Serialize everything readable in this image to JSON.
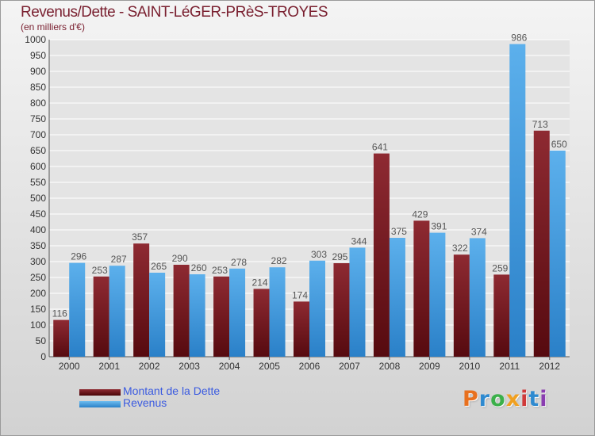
{
  "title": "Revenus/Dette - SAINT-LéGER-PRèS-TROYES",
  "subtitle": "(en milliers d'€)",
  "colors": {
    "dette": "#7a1a22",
    "revenus": "#4a9fe0",
    "axis_text": "#333333",
    "value_text": "#555555"
  },
  "legend": [
    {
      "label": "Montant de la Dette",
      "color": "#6b0f14"
    },
    {
      "label": "Revenus",
      "color": "#3d9ae0"
    }
  ],
  "logo": {
    "letters": [
      "P",
      "r",
      "o",
      "x",
      "i",
      "t",
      "i"
    ],
    "colors": [
      "#e8701e",
      "#2e8ad0",
      "#3bb04a",
      "#f0a020",
      "#d03a3a",
      "#2e8ad0",
      "#8a3cb0"
    ]
  },
  "chart_data": {
    "type": "bar",
    "categories": [
      "2000",
      "2001",
      "2002",
      "2003",
      "2004",
      "2005",
      "2006",
      "2007",
      "2008",
      "2009",
      "2010",
      "2011",
      "2012"
    ],
    "series": [
      {
        "name": "Montant de la Dette",
        "values": [
          116,
          253,
          357,
          290,
          253,
          214,
          174,
          295,
          641,
          429,
          322,
          259,
          713
        ]
      },
      {
        "name": "Revenus",
        "values": [
          296,
          287,
          265,
          260,
          278,
          282,
          303,
          344,
          375,
          391,
          374,
          986,
          650
        ]
      }
    ],
    "ylim": [
      0,
      1000
    ],
    "ytick_step": 50,
    "grid": true,
    "legend_position": "bottom-left"
  }
}
